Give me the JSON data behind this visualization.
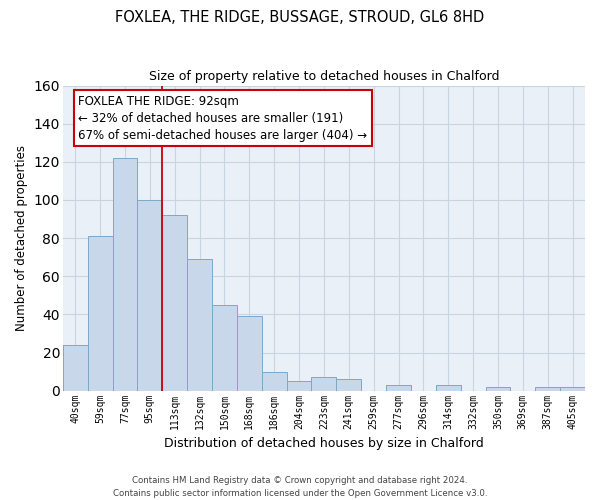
{
  "title": "FOXLEA, THE RIDGE, BUSSAGE, STROUD, GL6 8HD",
  "subtitle": "Size of property relative to detached houses in Chalford",
  "xlabel": "Distribution of detached houses by size in Chalford",
  "ylabel": "Number of detached properties",
  "bar_labels": [
    "40sqm",
    "59sqm",
    "77sqm",
    "95sqm",
    "113sqm",
    "132sqm",
    "150sqm",
    "168sqm",
    "186sqm",
    "204sqm",
    "223sqm",
    "241sqm",
    "259sqm",
    "277sqm",
    "296sqm",
    "314sqm",
    "332sqm",
    "350sqm",
    "369sqm",
    "387sqm",
    "405sqm"
  ],
  "bar_values": [
    24,
    81,
    122,
    100,
    92,
    69,
    45,
    39,
    10,
    5,
    7,
    6,
    0,
    3,
    0,
    3,
    0,
    2,
    0,
    2,
    2
  ],
  "bar_color": "#c8d8ea",
  "bar_edge_color": "#7aaac8",
  "vline_x": 3.5,
  "vline_color": "#cc0000",
  "ylim": [
    0,
    160
  ],
  "yticks": [
    0,
    20,
    40,
    60,
    80,
    100,
    120,
    140,
    160
  ],
  "grid_color": "#c8d4e0",
  "background_color": "#eaf0f8",
  "annotation_title": "FOXLEA THE RIDGE: 92sqm",
  "annotation_line1": "← 32% of detached houses are smaller (191)",
  "annotation_line2": "67% of semi-detached houses are larger (404) →",
  "footer1": "Contains HM Land Registry data © Crown copyright and database right 2024.",
  "footer2": "Contains public sector information licensed under the Open Government Licence v3.0."
}
